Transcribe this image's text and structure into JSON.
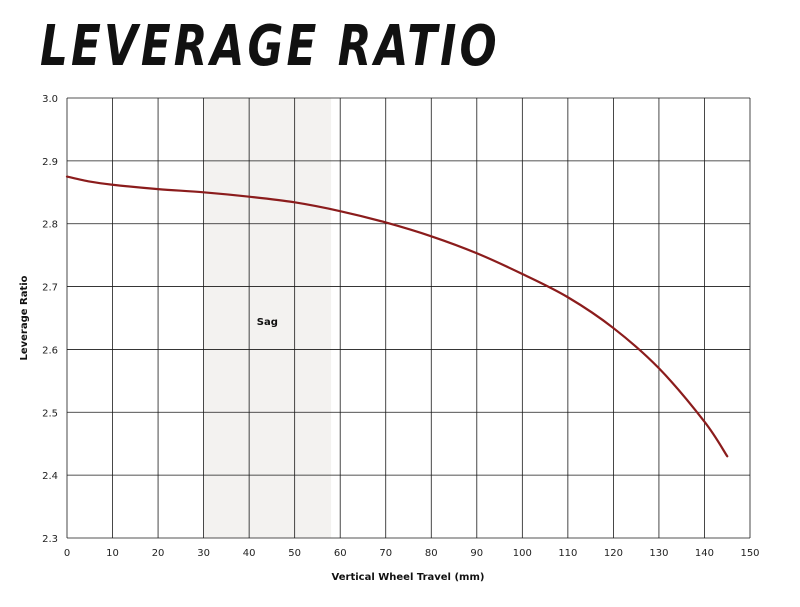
{
  "chart_data": {
    "type": "line",
    "title": "LEVERAGE RATIO",
    "xlabel": "Vertical Wheel Travel (mm)",
    "ylabel": "Leverage Ratio",
    "xlim": [
      0,
      150
    ],
    "ylim": [
      2.3,
      3.0
    ],
    "x_ticks": [
      "0",
      "10",
      "20",
      "30",
      "40",
      "50",
      "60",
      "70",
      "80",
      "90",
      "100",
      "110",
      "120",
      "130",
      "140",
      "150"
    ],
    "y_ticks": [
      "2.3",
      "2.4",
      "2.5",
      "2.6",
      "2.7",
      "2.8",
      "2.9",
      "3.0"
    ],
    "grid": true,
    "legend": "none",
    "annotations": [
      {
        "label": "Sag",
        "x_range": [
          30,
          58
        ]
      }
    ],
    "series": [
      {
        "color": "#8b1c1c",
        "x": [
          0,
          5,
          10,
          20,
          30,
          40,
          50,
          60,
          70,
          80,
          90,
          100,
          110,
          120,
          130,
          140,
          145
        ],
        "y": [
          2.875,
          2.867,
          2.862,
          2.855,
          2.85,
          2.843,
          2.834,
          2.82,
          2.802,
          2.78,
          2.753,
          2.72,
          2.683,
          2.634,
          2.57,
          2.485,
          2.43
        ]
      }
    ]
  }
}
